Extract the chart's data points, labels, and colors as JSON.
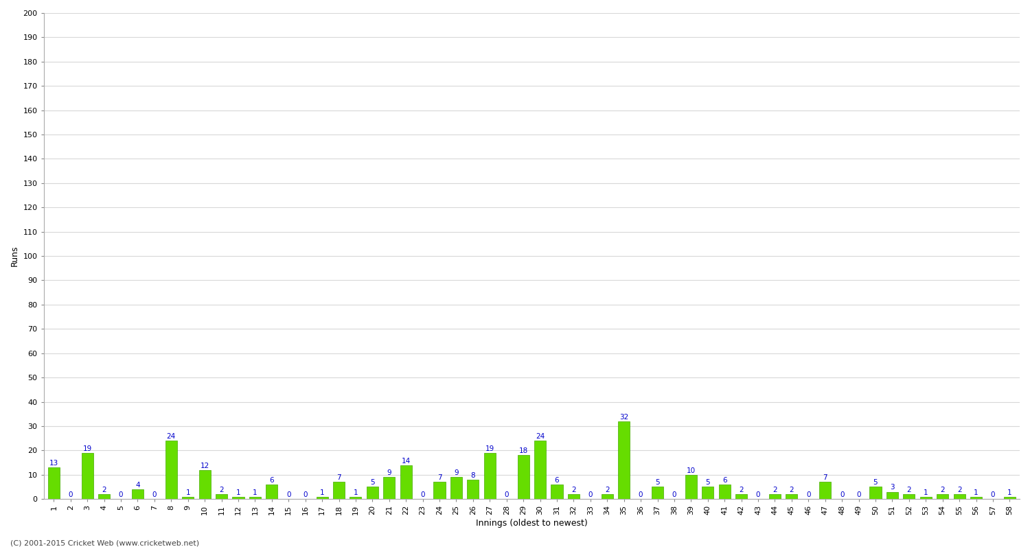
{
  "values": [
    13,
    0,
    19,
    2,
    0,
    4,
    0,
    24,
    1,
    12,
    2,
    1,
    1,
    6,
    0,
    0,
    1,
    7,
    1,
    5,
    9,
    14,
    0,
    7,
    9,
    8,
    19,
    0,
    18,
    24,
    6,
    2,
    0,
    2,
    32,
    0,
    5,
    0,
    10,
    5,
    6,
    2,
    0,
    2,
    2,
    0,
    7,
    0,
    0,
    5,
    3,
    2,
    1,
    2,
    2,
    1,
    0,
    1
  ],
  "labels": [
    "1",
    "2",
    "3",
    "4",
    "5",
    "6",
    "7",
    "8",
    "9",
    "10",
    "11",
    "12",
    "13",
    "14",
    "15",
    "16",
    "17",
    "18",
    "19",
    "20",
    "21",
    "22",
    "23",
    "24",
    "25",
    "26",
    "27",
    "28",
    "29",
    "30",
    "31",
    "32",
    "33",
    "34",
    "35",
    "36",
    "37",
    "38",
    "39",
    "40",
    "41",
    "42",
    "43",
    "44",
    "45",
    "46",
    "47",
    "48",
    "49",
    "50",
    "51",
    "52",
    "53",
    "54",
    "55",
    "56",
    "57",
    "58"
  ],
  "bar_color": "#66dd00",
  "bar_edge_color": "#44aa00",
  "ylabel": "Runs",
  "xlabel": "Innings (oldest to newest)",
  "ylim": [
    0,
    200
  ],
  "yticks": [
    0,
    10,
    20,
    30,
    40,
    50,
    60,
    70,
    80,
    90,
    100,
    110,
    120,
    130,
    140,
    150,
    160,
    170,
    180,
    190,
    200
  ],
  "label_color": "#0000cc",
  "label_fontsize": 7.5,
  "tick_fontsize": 8,
  "footer": "(C) 2001-2015 Cricket Web (www.cricketweb.net)",
  "background_color": "#ffffff",
  "grid_color": "#d8d8d8"
}
